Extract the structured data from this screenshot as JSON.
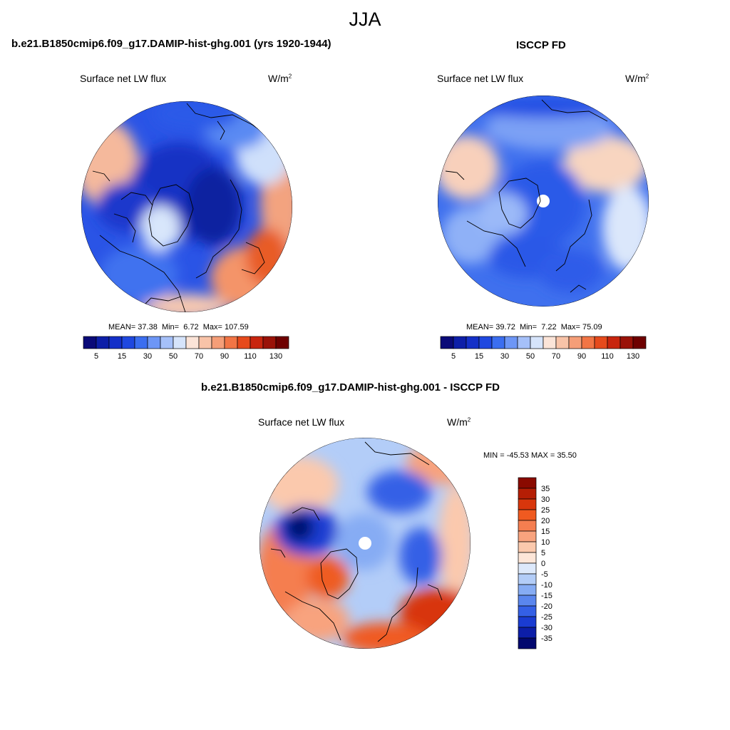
{
  "season": "JJA",
  "panels": [
    {
      "title": "b.e21.B1850cmip6.f09_g17.DAMIP-hist-ghg.001 (yrs 1920-1944)",
      "variable": "Surface net LW flux",
      "units_base": "W/m",
      "units_exp": "2",
      "mean_label": "MEAN=",
      "mean": "37.38",
      "min_label": "Min=",
      "min": "6.72",
      "max_label": "Max=",
      "max": "107.59"
    },
    {
      "title": "ISCCP FD",
      "variable": "Surface net LW flux",
      "units_base": "W/m",
      "units_exp": "2",
      "mean_label": "MEAN=",
      "mean": "39.72",
      "min_label": "Min=",
      "min": "7.22",
      "max_label": "Max=",
      "max": "75.09"
    },
    {
      "title": "b.e21.B1850cmip6.f09_g17.DAMIP-hist-ghg.001 - ISCCP FD",
      "variable": "Surface net LW flux",
      "units_base": "W/m",
      "units_exp": "2",
      "minmax_label": "MIN = -45.53 MAX =  35.50"
    }
  ],
  "chart_data": [
    {
      "type": "heatmap",
      "projection": "north polar stereographic",
      "title": "b.e21.B1850cmip6.f09_g17.DAMIP-hist-ghg.001 (yrs 1920-1944)",
      "variable": "Surface net LW flux",
      "units": "W/m2",
      "stats": {
        "mean": 37.38,
        "min": 6.72,
        "max": 107.59
      },
      "colorbar": {
        "orientation": "horizontal",
        "levels": [
          5,
          10,
          15,
          20,
          30,
          40,
          50,
          60,
          70,
          80,
          90,
          100,
          110,
          120,
          130
        ],
        "tick_labels": [
          "5",
          "15",
          "30",
          "50",
          "70",
          "90",
          "110",
          "130"
        ],
        "colors": [
          "#0a0a78",
          "#0d1fa8",
          "#1430c8",
          "#1f48e0",
          "#3b6ef0",
          "#6d96f6",
          "#a5c0f9",
          "#d6e4fb",
          "#fbe4d8",
          "#f8c3a8",
          "#f59e78",
          "#f27545",
          "#e64a1c",
          "#c8250e",
          "#9a1208",
          "#6e0000"
        ]
      },
      "regions": {
        "arctic_ocean": "15-30",
        "greenland": "30-50",
        "north_atlantic": "30-50",
        "north_pacific": "30-50",
        "eastern_siberia": "70-110",
        "north_africa": "50-90"
      }
    },
    {
      "type": "heatmap",
      "projection": "north polar stereographic",
      "title": "ISCCP FD",
      "variable": "Surface net LW flux",
      "units": "W/m2",
      "stats": {
        "mean": 39.72,
        "min": 7.22,
        "max": 75.09
      },
      "colorbar": {
        "orientation": "horizontal",
        "levels": [
          5,
          10,
          15,
          20,
          30,
          40,
          50,
          60,
          70,
          80,
          90,
          100,
          110,
          120,
          130
        ],
        "tick_labels": [
          "5",
          "15",
          "30",
          "50",
          "70",
          "90",
          "110",
          "130"
        ],
        "colors": [
          "#0a0a78",
          "#0d1fa8",
          "#1430c8",
          "#1f48e0",
          "#3b6ef0",
          "#6d96f6",
          "#a5c0f9",
          "#d6e4fb",
          "#fbe4d8",
          "#f8c3a8",
          "#f59e78",
          "#f27545",
          "#e64a1c",
          "#c8250e",
          "#9a1208",
          "#6e0000"
        ]
      },
      "missing": "pole (white disc)",
      "regions": {
        "arctic_ocean": "30-40",
        "north_pacific": "30-50",
        "north_atlantic": "30-40",
        "siberia": "50-70"
      }
    },
    {
      "type": "heatmap",
      "projection": "north polar stereographic",
      "title": "b.e21.B1850cmip6.f09_g17.DAMIP-hist-ghg.001 - ISCCP FD",
      "variable": "Surface net LW flux",
      "units": "W/m2",
      "stats": {
        "min": -45.53,
        "max": 35.5
      },
      "colorbar": {
        "orientation": "vertical",
        "levels": [
          -35,
          -30,
          -25,
          -20,
          -15,
          -10,
          -5,
          0,
          5,
          10,
          15,
          20,
          25,
          30,
          35
        ],
        "tick_labels": [
          "35",
          "30",
          "25",
          "20",
          "15",
          "10",
          "5",
          "0",
          "-5",
          "-10",
          "-15",
          "-20",
          "-25",
          "-30",
          "-35"
        ],
        "colors_top_to_bottom": [
          "#8a0a00",
          "#b51e05",
          "#d8360c",
          "#f05a20",
          "#f57e50",
          "#f8a37e",
          "#fbc9ad",
          "#fde6d8",
          "#dde9fb",
          "#b3cdf8",
          "#86acf4",
          "#5a86ee",
          "#3460e6",
          "#1a3cd2",
          "#0c1ea8",
          "#02086e"
        ]
      },
      "missing": "pole (white disc)",
      "regions": {
        "canadian_archipelago": "-35 to -25",
        "arctic_ocean": "-10 to -5",
        "greenland": "10 to 25",
        "siberia": "-20 to -10",
        "north_pacific": "15 to 35"
      }
    }
  ]
}
